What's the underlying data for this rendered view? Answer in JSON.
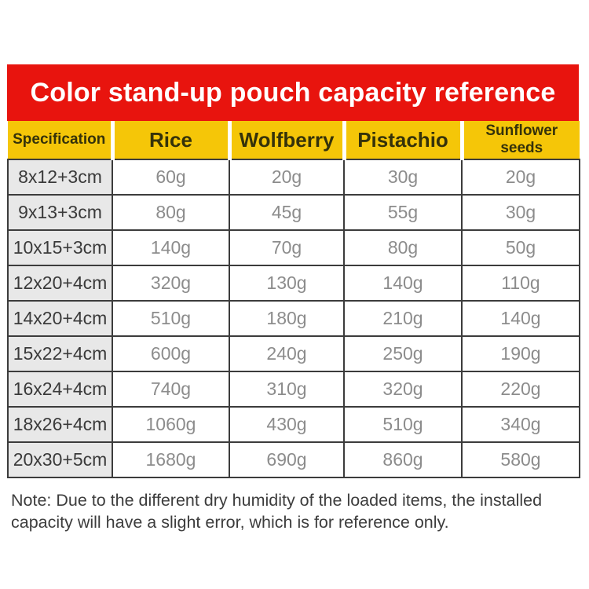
{
  "title": "Color stand-up pouch capacity reference",
  "chart_data": {
    "type": "table",
    "title": "Color stand-up pouch capacity reference",
    "columns": [
      "Specification",
      "Rice",
      "Wolfberry",
      "Pistachio",
      "Sunflower seeds"
    ],
    "rows": [
      [
        "8x12+3cm",
        "60g",
        "20g",
        "30g",
        "20g"
      ],
      [
        "9x13+3cm",
        "80g",
        "45g",
        "55g",
        "30g"
      ],
      [
        "10x15+3cm",
        "140g",
        "70g",
        "80g",
        "50g"
      ],
      [
        "12x20+4cm",
        "320g",
        "130g",
        "140g",
        "110g"
      ],
      [
        "14x20+4cm",
        "510g",
        "180g",
        "210g",
        "140g"
      ],
      [
        "15x22+4cm",
        "600g",
        "240g",
        "250g",
        "190g"
      ],
      [
        "16x24+4cm",
        "740g",
        "310g",
        "320g",
        "220g"
      ],
      [
        "18x26+4cm",
        "1060g",
        "430g",
        "510g",
        "340g"
      ],
      [
        "20x30+5cm",
        "1680g",
        "690g",
        "860g",
        "580g"
      ]
    ]
  },
  "note": "Note: Due to the different dry humidity of the loaded items, the installed capacity will have a slight error, which is for reference only.",
  "colors": {
    "banner_red": "#e8140e",
    "header_yellow": "#f5c608",
    "spec_cell_gray": "#e8e8e8",
    "value_text_gray": "#8c8c8c",
    "border_dark": "#3c3c3c",
    "title_text": "#ffffff"
  }
}
